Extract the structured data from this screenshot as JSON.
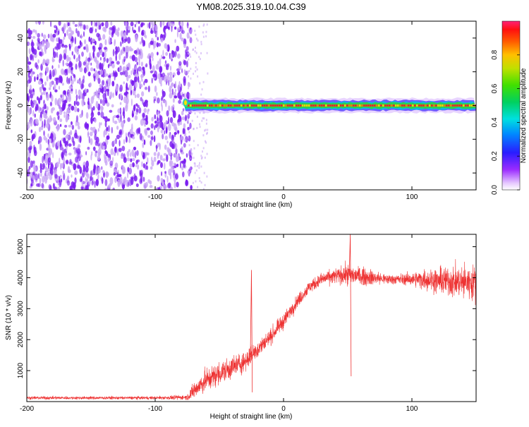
{
  "title": "YM08.2025.319.10.04.C39",
  "colors": {
    "snr_line": "#ee3333",
    "spectrum_noise": "#7a1cf0",
    "spectrum_noise_light": "#c9a6f5",
    "axis": "#000000"
  },
  "chart_data": [
    {
      "type": "heatmap",
      "name": "spectrogram",
      "xlabel": "Height of straight line (km)",
      "ylabel": "Frequency (Hz)",
      "xlim": [
        -200,
        150
      ],
      "ylim": [
        -50,
        50
      ],
      "x_ticks": [
        -200,
        -100,
        0,
        100
      ],
      "x_tick_labels": [
        "-200",
        "-100",
        "0",
        "100"
      ],
      "y_ticks": [
        -40,
        -20,
        0,
        20,
        40
      ],
      "y_tick_labels": [
        "-40",
        "-20",
        "0",
        "20",
        "40"
      ],
      "noise_region_x": [
        -200,
        -75
      ],
      "signal_line_frequency": 0,
      "signal_start_x": -78,
      "colorbar": {
        "label": "Normalized spectral amplitude",
        "range": [
          0,
          1
        ],
        "ticks": [
          0.0,
          0.2,
          0.4,
          0.6,
          0.8
        ],
        "tick_labels": [
          "0.0",
          "0.2",
          "0.4",
          "0.6",
          "0.8"
        ]
      }
    },
    {
      "type": "line",
      "name": "snr",
      "xlabel": "Height of straight line (km)",
      "ylabel": "SNR (10 * v/v)",
      "xlim": [
        -200,
        150
      ],
      "ylim": [
        0,
        5400
      ],
      "x_ticks": [
        -200,
        -100,
        0,
        100
      ],
      "x_tick_labels": [
        "-200",
        "-100",
        "0",
        "100"
      ],
      "y_ticks": [
        1000,
        2000,
        3000,
        4000,
        5000
      ],
      "y_tick_labels": [
        "1000",
        "2000",
        "3000",
        "4000",
        "5000"
      ],
      "series": [
        {
          "name": "SNR",
          "x": [
            -200,
            -150,
            -100,
            -75,
            -70,
            -60,
            -50,
            -40,
            -30,
            -20,
            -10,
            0,
            10,
            20,
            30,
            40,
            50,
            60,
            70,
            80,
            90,
            100,
            110,
            120,
            130,
            140,
            150
          ],
          "y": [
            120,
            120,
            120,
            140,
            350,
            700,
            900,
            1100,
            1300,
            1700,
            2100,
            2600,
            3200,
            3700,
            3950,
            4050,
            4100,
            4050,
            4000,
            3950,
            3950,
            3950,
            3950,
            3900,
            3900,
            3850,
            3850
          ],
          "spread": [
            60,
            60,
            60,
            100,
            350,
            450,
            450,
            450,
            400,
            350,
            300,
            300,
            250,
            250,
            250,
            300,
            400,
            350,
            300,
            200,
            200,
            250,
            400,
            500,
            600,
            650,
            650
          ]
        }
      ],
      "spikes": [
        {
          "x": -25,
          "y": 4250
        },
        {
          "x": 52,
          "y": 5400
        }
      ]
    }
  ]
}
